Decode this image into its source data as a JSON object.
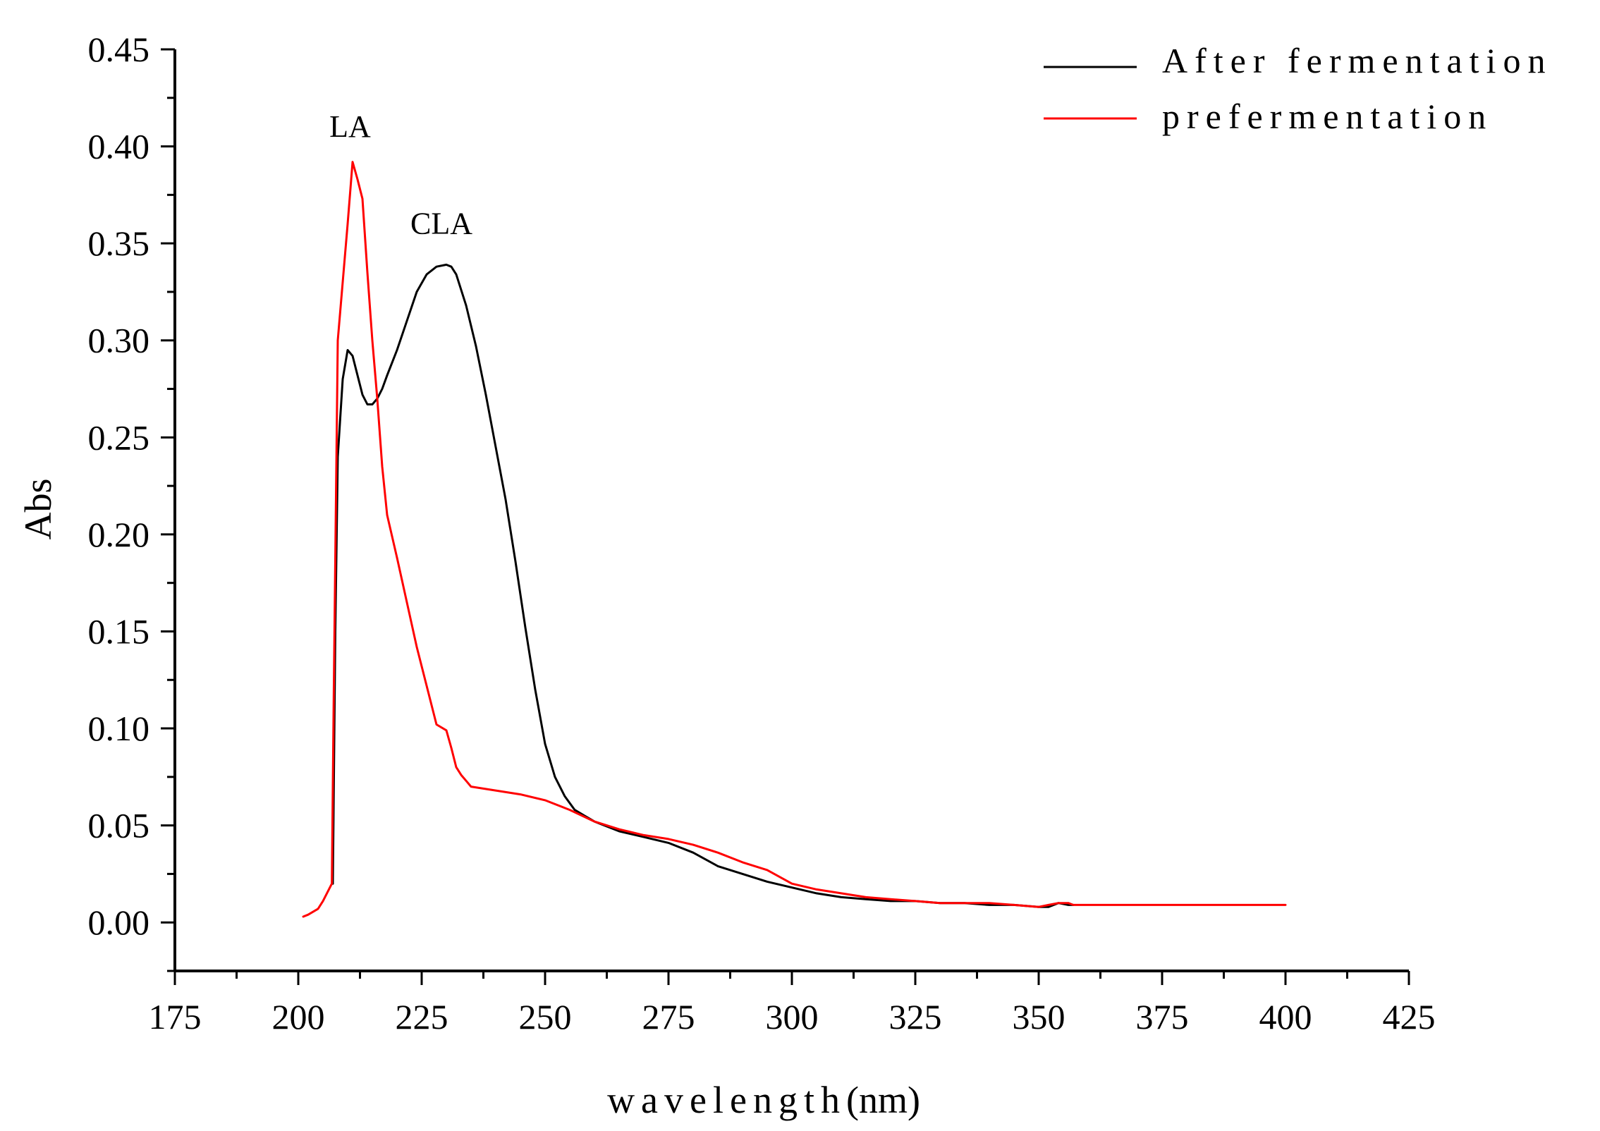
{
  "chart_data": {
    "type": "line",
    "xlabel_spaced": "wavelength",
    "xlabel_unit": "(nm)",
    "ylabel": "Abs",
    "xlim": [
      175,
      425
    ],
    "ylim": [
      -0.025,
      0.45
    ],
    "xticks": [
      175,
      200,
      225,
      250,
      275,
      300,
      325,
      350,
      375,
      400,
      425
    ],
    "xtick_labels": [
      "175",
      "200",
      "225",
      "250",
      "275",
      "300",
      "325",
      "350",
      "375",
      "400",
      "425"
    ],
    "yticks": [
      0.0,
      0.05,
      0.1,
      0.15,
      0.2,
      0.25,
      0.3,
      0.35,
      0.4,
      0.45
    ],
    "ytick_labels": [
      "0.00",
      "0.05",
      "0.10",
      "0.15",
      "0.20",
      "0.25",
      "0.30",
      "0.35",
      "0.40",
      "0.45"
    ],
    "grid": false,
    "legend_position": "top-right",
    "annotations": [
      {
        "text": "LA",
        "x": 210.5,
        "y": 0.405
      },
      {
        "text": "CLA",
        "x": 229,
        "y": 0.355
      }
    ],
    "series": [
      {
        "name": "After fermentation",
        "color": "#000000",
        "x": [
          207,
          207.5,
          208,
          209,
          210,
          211,
          212,
          213,
          214,
          215,
          216,
          217,
          218,
          220,
          222,
          224,
          226,
          228,
          230,
          231,
          232,
          234,
          236,
          238,
          240,
          242,
          244,
          246,
          248,
          250,
          252,
          254,
          256,
          258,
          260,
          265,
          270,
          275,
          280,
          285,
          290,
          295,
          300,
          305,
          310,
          315,
          320,
          325,
          330,
          335,
          340,
          345,
          350,
          352,
          354,
          356,
          357
        ],
        "y": [
          0.02,
          0.15,
          0.24,
          0.28,
          0.295,
          0.292,
          0.282,
          0.272,
          0.267,
          0.267,
          0.27,
          0.275,
          0.282,
          0.295,
          0.31,
          0.325,
          0.334,
          0.338,
          0.339,
          0.338,
          0.334,
          0.318,
          0.297,
          0.272,
          0.245,
          0.218,
          0.186,
          0.152,
          0.12,
          0.092,
          0.075,
          0.065,
          0.058,
          0.055,
          0.052,
          0.047,
          0.044,
          0.041,
          0.036,
          0.029,
          0.025,
          0.021,
          0.018,
          0.015,
          0.013,
          0.012,
          0.011,
          0.011,
          0.01,
          0.01,
          0.009,
          0.009,
          0.008,
          0.008,
          0.01,
          0.009,
          0.009
        ]
      },
      {
        "name": "prefermentation",
        "color": "#ff0000",
        "x": [
          201,
          202,
          204,
          205,
          206,
          206.8,
          207.2,
          208,
          209,
          210,
          211,
          212,
          213,
          214,
          215,
          216,
          217,
          218,
          220,
          222,
          224,
          226,
          228,
          230,
          231,
          232,
          233,
          234,
          235,
          240,
          245,
          250,
          255,
          260,
          265,
          270,
          275,
          280,
          285,
          290,
          295,
          300,
          305,
          310,
          315,
          320,
          325,
          330,
          335,
          340,
          345,
          350,
          352,
          354,
          356,
          357,
          360,
          370,
          380,
          390,
          400
        ],
        "y": [
          0.003,
          0.004,
          0.007,
          0.011,
          0.016,
          0.02,
          0.12,
          0.3,
          0.33,
          0.36,
          0.392,
          0.383,
          0.373,
          0.335,
          0.3,
          0.27,
          0.235,
          0.21,
          0.188,
          0.165,
          0.142,
          0.122,
          0.102,
          0.099,
          0.09,
          0.08,
          0.076,
          0.073,
          0.07,
          0.068,
          0.066,
          0.063,
          0.058,
          0.052,
          0.048,
          0.045,
          0.043,
          0.04,
          0.036,
          0.031,
          0.027,
          0.02,
          0.017,
          0.015,
          0.013,
          0.012,
          0.011,
          0.01,
          0.01,
          0.01,
          0.009,
          0.008,
          0.009,
          0.01,
          0.01,
          0.009,
          0.009,
          0.009,
          0.009,
          0.009,
          0.009
        ]
      }
    ]
  }
}
